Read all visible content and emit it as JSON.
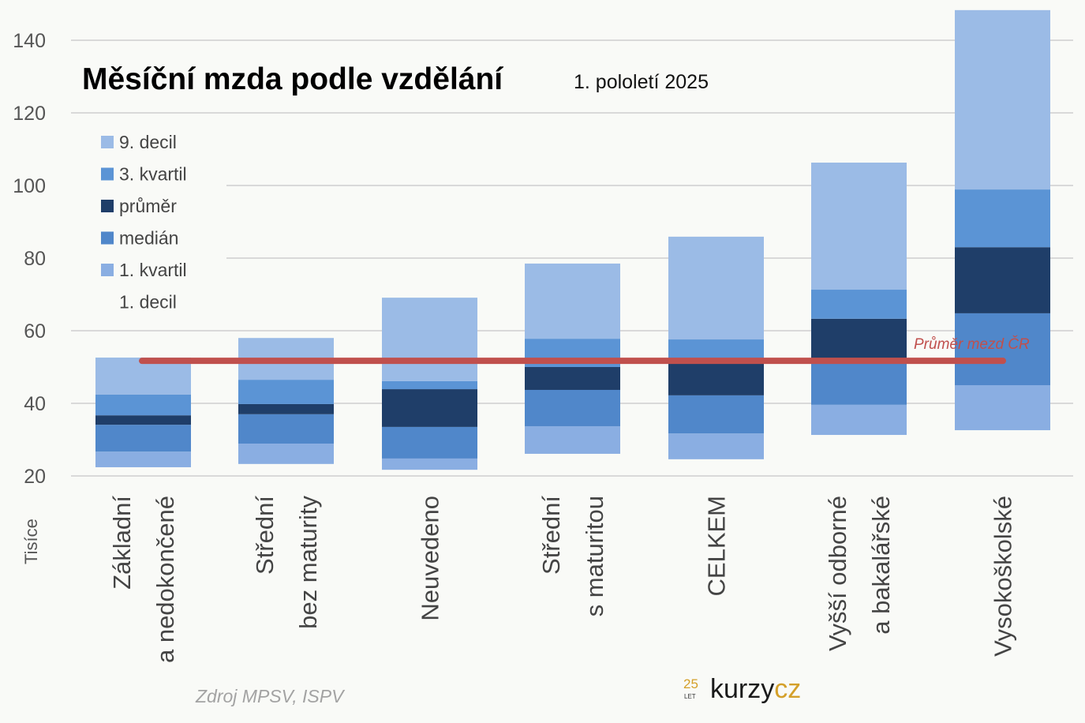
{
  "chart_data": {
    "type": "bar",
    "stacked": true,
    "title": "Měsíční mzda podle vzdělání",
    "subtitle": "1. pololetí 2025",
    "ylabel": "Tisíce",
    "ylim": [
      20,
      140
    ],
    "yticks": [
      20,
      40,
      60,
      80,
      100,
      120,
      140
    ],
    "grid": true,
    "legend_position": "top-left",
    "categories": [
      [
        "Základní",
        "a nedokončené"
      ],
      [
        "Střední",
        "bez maturity"
      ],
      [
        "Neuvedeno"
      ],
      [
        "Střední",
        "s maturitou"
      ],
      [
        "CELKEM"
      ],
      [
        "Vyšší odborné",
        "a bakalářské"
      ],
      [
        "Vysokoškolské"
      ]
    ],
    "series_order_top_to_bottom": [
      "9. decil",
      "3. kvartil",
      "průměr",
      "medián",
      "1. kvartil",
      "1. decil"
    ],
    "series": [
      {
        "name": "1. decil",
        "color": "#f9faf7",
        "values": [
          22.4,
          23.3,
          21.7,
          26.1,
          24.6,
          31.3,
          32.6
        ]
      },
      {
        "name": "1. kvartil",
        "color": "#8aaee2",
        "values": [
          26.7,
          28.9,
          24.8,
          33.7,
          31.7,
          39.6,
          45.0
        ]
      },
      {
        "name": "medián",
        "color": "#5087ca",
        "values": [
          34.1,
          37.0,
          33.5,
          43.7,
          42.2,
          51.5,
          64.8
        ]
      },
      {
        "name": "průměr",
        "color": "#1f3e69",
        "values": [
          36.7,
          39.8,
          43.9,
          50.0,
          52.0,
          63.3,
          83.0
        ]
      },
      {
        "name": "3. kvartil",
        "color": "#5b94d5",
        "values": [
          42.4,
          46.5,
          46.1,
          57.8,
          57.6,
          71.3,
          98.9
        ]
      },
      {
        "name": "9. decil",
        "color": "#9bbbe6",
        "values": [
          52.6,
          58.0,
          69.1,
          78.5,
          85.9,
          106.3,
          148.3
        ]
      }
    ],
    "reference_line": {
      "label": "Průměr mezd ČR",
      "value": 51.7,
      "color": "#c0504d"
    }
  },
  "source": "Zdroj MPSV, ISPV",
  "logo": {
    "number": "25",
    "let": "LET",
    "part1": "kurzy",
    "part2": "cz"
  }
}
